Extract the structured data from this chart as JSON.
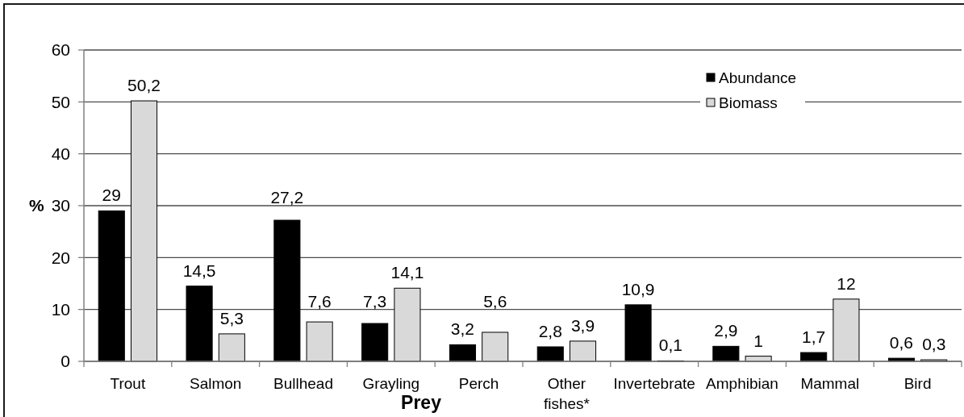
{
  "chart_data": {
    "type": "bar",
    "xlabel": "Prey",
    "ylabel": "%",
    "categories": [
      "Trout",
      "Salmon",
      "Bullhead",
      "Grayling",
      "Perch",
      "Other fishes*",
      "Invertebrate",
      "Amphibian",
      "Mammal",
      "Bird"
    ],
    "series": [
      {
        "name": "Abundance",
        "color": "#000000",
        "values": [
          29,
          14.5,
          27.2,
          7.3,
          3.2,
          2.8,
          10.9,
          2.9,
          1.7,
          0.6
        ],
        "value_labels": [
          "29",
          "14,5",
          "27,2",
          "7,3",
          "3,2",
          "2,8",
          "10,9",
          "2,9",
          "1,7",
          "0,6"
        ]
      },
      {
        "name": "Biomass",
        "color": "#d9d9d9",
        "values": [
          50.2,
          5.3,
          7.6,
          14.1,
          5.6,
          3.9,
          0.1,
          1,
          12,
          0.3
        ],
        "value_labels": [
          "50,2",
          "5,3",
          "7,6",
          "14,1",
          "5,6",
          "3,9",
          "0,1",
          "1",
          "12",
          "0,3"
        ]
      }
    ],
    "ylim": [
      0,
      60
    ],
    "yticks": [
      0,
      10,
      20,
      30,
      40,
      50,
      60
    ],
    "grid": "y",
    "legend": "top right"
  }
}
